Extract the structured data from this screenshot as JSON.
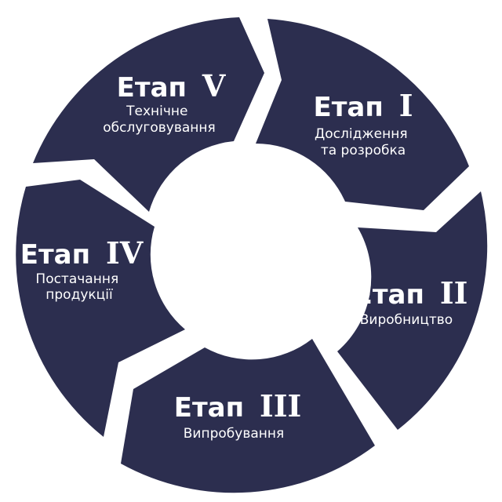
{
  "colors": {
    "segment": "#2c2e4f",
    "text": "#ffffff",
    "background": "#ffffff"
  },
  "stages": [
    {
      "word": "Етап",
      "numeral": "I",
      "desc": [
        "Дослідження",
        "та розробка"
      ]
    },
    {
      "word": "Етап",
      "numeral": "II",
      "desc": [
        "Виробництво"
      ]
    },
    {
      "word": "Етап",
      "numeral": "III",
      "desc": [
        "Випробування"
      ]
    },
    {
      "word": "Етап",
      "numeral": "IV",
      "desc": [
        "Постачання",
        "продукції"
      ]
    },
    {
      "word": "Етап",
      "numeral": "V",
      "desc": [
        "Технічне",
        "обслуговування"
      ]
    }
  ]
}
